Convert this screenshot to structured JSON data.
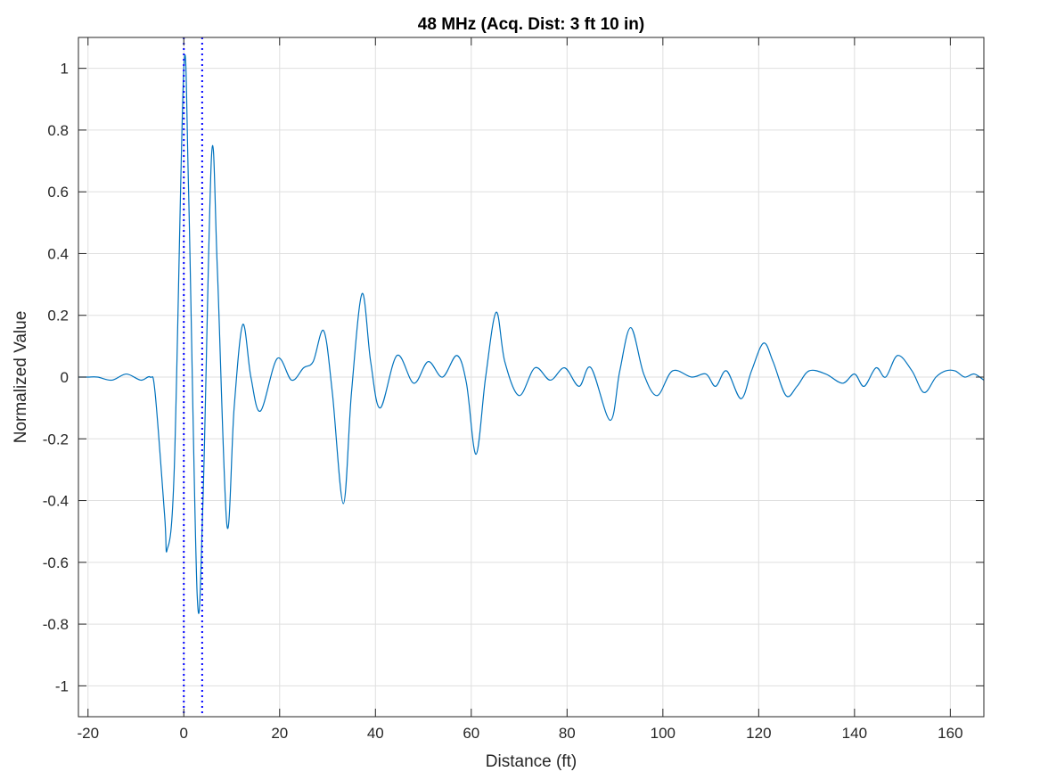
{
  "chart_data": {
    "type": "line",
    "title": "48 MHz (Acq. Dist: 3 ft 10 in)",
    "xlabel": "Distance (ft)",
    "ylabel": "Normalized Value",
    "xlim": [
      -22,
      167
    ],
    "ylim": [
      -1.1,
      1.1
    ],
    "xticks": [
      -20,
      0,
      20,
      40,
      60,
      80,
      100,
      120,
      140,
      160
    ],
    "xtick_labels": [
      "-20",
      "0",
      "20",
      "40",
      "60",
      "80",
      "100",
      "120",
      "140",
      "160"
    ],
    "yticks": [
      1,
      0.8,
      0.6,
      0.4,
      0.2,
      0,
      -0.2,
      -0.4,
      -0.6,
      -0.8,
      -1
    ],
    "ytick_labels": [
      "1",
      "0.8",
      "0.6",
      "0.4",
      "0.2",
      "0",
      "-0.2",
      "-0.4",
      "-0.6",
      "-0.8",
      "-1"
    ],
    "grid": true,
    "series": [
      {
        "color": "#0072BD",
        "x": [
          -22,
          -20,
          -18,
          -15,
          -12,
          -9,
          -7,
          -6,
          -4,
          -3.5,
          -2,
          0,
          1,
          2.8,
          4,
          5.8,
          7,
          9,
          10.5,
          12.3,
          14,
          16,
          19.5,
          22.5,
          25,
          27,
          29.2,
          31,
          33.3,
          35,
          37.2,
          39,
          41,
          44.5,
          48,
          51,
          54,
          57,
          59,
          61,
          63,
          65.2,
          67,
          70,
          73.3,
          76.5,
          79.5,
          82.5,
          85,
          89,
          91,
          93.3,
          96,
          98.8,
          102,
          106,
          109,
          111,
          113.3,
          116.3,
          118.5,
          121,
          123,
          125.7,
          128,
          130.5,
          134,
          137.5,
          140,
          142,
          144.5,
          146.5,
          149,
          152,
          154.5,
          157,
          159,
          161,
          163,
          165,
          167
        ],
        "y": [
          0.0,
          0.0,
          0.0,
          -0.01,
          0.01,
          -0.01,
          0.0,
          -0.05,
          -0.45,
          -0.56,
          -0.3,
          1.0,
          0.6,
          -0.71,
          -0.4,
          0.72,
          0.35,
          -0.48,
          -0.1,
          0.17,
          0.0,
          -0.11,
          0.06,
          -0.01,
          0.03,
          0.05,
          0.15,
          -0.05,
          -0.41,
          -0.05,
          0.27,
          0.05,
          -0.1,
          0.07,
          -0.02,
          0.05,
          0.0,
          0.07,
          -0.02,
          -0.25,
          0.0,
          0.21,
          0.05,
          -0.06,
          0.03,
          -0.01,
          0.03,
          -0.03,
          0.03,
          -0.14,
          0.02,
          0.16,
          0.01,
          -0.06,
          0.02,
          0.0,
          0.01,
          -0.03,
          0.02,
          -0.07,
          0.02,
          0.11,
          0.05,
          -0.06,
          -0.03,
          0.02,
          0.01,
          -0.02,
          0.01,
          -0.03,
          0.03,
          0.0,
          0.07,
          0.02,
          -0.05,
          0.0,
          0.02,
          0.02,
          0.0,
          0.01,
          -0.01
        ]
      }
    ],
    "vertical_markers": [
      {
        "x": 0,
        "style": "dotted",
        "color": "#0000FF"
      },
      {
        "x": 3.83,
        "style": "dotted",
        "color": "#0000FF"
      }
    ]
  }
}
